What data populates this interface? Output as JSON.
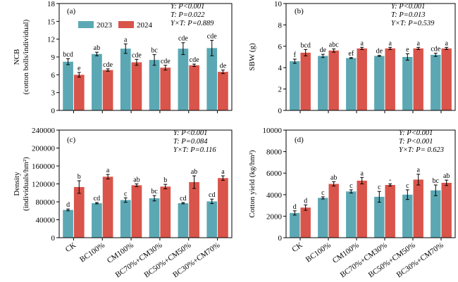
{
  "colors": {
    "y2023": "#5ba8b4",
    "y2024": "#d9544a"
  },
  "legend": [
    "2023",
    "2024"
  ],
  "categories": [
    "CK",
    "BC100%",
    "CM100%",
    "BC70%+CM30%",
    "BC50%+CM50%",
    "BC30%+CM70%"
  ],
  "chart_data": [
    {
      "type": "bar",
      "panel": "(a)",
      "ylabel_lines": [
        "NCB",
        "(cotton bolls/individual)"
      ],
      "ylim": [
        0,
        18
      ],
      "yticks": [
        0,
        3,
        6,
        9,
        12,
        15,
        18
      ],
      "ytick_labels": [
        "0",
        "3",
        "6",
        "9",
        "12",
        "15",
        "18"
      ],
      "categories": [
        "CK",
        "BC100%",
        "CM100%",
        "BC70%+CM30%",
        "BC50%+CM50%",
        "BC30%+CM70%"
      ],
      "series": [
        {
          "name": "2023",
          "values": [
            8.2,
            9.5,
            10.4,
            8.5,
            10.4,
            10.5
          ],
          "errors": [
            0.5,
            0.3,
            0.8,
            0.9,
            1.0,
            1.3
          ],
          "letters": [
            "bcd",
            "ab",
            "a",
            "bc",
            "cde",
            "cde"
          ]
        },
        {
          "name": "2024",
          "values": [
            6.0,
            6.8,
            8.1,
            7.2,
            7.6,
            6.5
          ],
          "errors": [
            0.4,
            0.2,
            0.5,
            0.4,
            0.2,
            0.3
          ],
          "letters": [
            "e",
            "cde",
            "cde",
            "cde",
            "cde",
            "de"
          ]
        }
      ],
      "stats": [
        "Y: P<0.001",
        "T: P=0.022",
        "Y×T: P=0.889"
      ]
    },
    {
      "type": "bar",
      "panel": "(b)",
      "ylabel_lines": [
        "SBW (g)"
      ],
      "ylim": [
        0,
        10
      ],
      "yticks": [
        0,
        2,
        4,
        6,
        8,
        10
      ],
      "ytick_labels": [
        "0",
        "2",
        "4",
        "6",
        "8",
        "10"
      ],
      "categories": [
        "CK",
        "BC100%",
        "CM100%",
        "BC70%+CM30%",
        "BC50%+CM50%",
        "BC30%+CM70%"
      ],
      "series": [
        {
          "name": "2023",
          "values": [
            4.6,
            5.1,
            4.9,
            5.1,
            5.0,
            5.2
          ],
          "errors": [
            0.2,
            0.15,
            0.05,
            0.05,
            0.3,
            0.15
          ],
          "letters": [
            "f",
            "de",
            "ef",
            "de",
            "e",
            "cde"
          ]
        },
        {
          "name": "2024",
          "values": [
            5.4,
            5.6,
            5.8,
            5.8,
            5.8,
            5.8
          ],
          "errors": [
            0.3,
            0.15,
            0.1,
            0.1,
            0.1,
            0.1
          ],
          "letters": [
            "bcd",
            "abc",
            "a",
            "a",
            "a",
            "a"
          ]
        }
      ],
      "stats": [
        "Y: P<0.001",
        "T: P=0.013",
        "Y×T: P=0.539"
      ]
    },
    {
      "type": "bar",
      "panel": "(c)",
      "ylabel_lines": [
        "Density",
        "(individuals/hm²)"
      ],
      "ylim": [
        0,
        240000
      ],
      "yticks": [
        0,
        40000,
        80000,
        120000,
        160000,
        200000,
        240000
      ],
      "ytick_labels": [
        "0",
        "40000",
        "80000",
        "120000",
        "160000",
        "200000",
        "240000"
      ],
      "categories": [
        "CK",
        "BC100%",
        "CM100%",
        "BC70%+CM30%",
        "BC50%+CM50%",
        "BC30%+CM70%"
      ],
      "series": [
        {
          "name": "2023",
          "values": [
            62000,
            77000,
            84000,
            88000,
            77000,
            81000
          ],
          "errors": [
            2000,
            1500,
            5000,
            6000,
            1500,
            5000
          ],
          "letters": [
            "d",
            "cd",
            "c",
            "bc",
            "cd",
            "cd"
          ]
        },
        {
          "name": "2024",
          "values": [
            113000,
            136000,
            117000,
            114000,
            124000,
            133000
          ],
          "errors": [
            14000,
            5000,
            3000,
            5000,
            14000,
            5000
          ],
          "letters": [
            "b",
            "a",
            "ab",
            "b",
            "ab",
            "a"
          ]
        }
      ],
      "stats": [
        "Y: P<0.001",
        "T: P=0.084",
        "Y×T: P=0.116"
      ]
    },
    {
      "type": "bar",
      "panel": "(d)",
      "ylabel_lines": [
        "Cotton yield (kg/hm²)"
      ],
      "ylim": [
        0,
        10000
      ],
      "yticks": [
        0,
        2000,
        4000,
        6000,
        8000,
        10000
      ],
      "ytick_labels": [
        "0",
        "2000",
        "4000",
        "6000",
        "8000",
        "10000"
      ],
      "categories": [
        "CK",
        "BC100%",
        "CM100%",
        "BC70%+CM30%",
        "BC50%+CM50%",
        "BC30%+CM70%"
      ],
      "series": [
        {
          "name": "2023",
          "values": [
            2300,
            3700,
            4300,
            3800,
            4000,
            4400
          ],
          "errors": [
            200,
            100,
            150,
            500,
            450,
            500
          ],
          "letters": [
            "d",
            "c",
            "c",
            "c",
            "c",
            "bc"
          ]
        },
        {
          "name": "2024",
          "values": [
            2800,
            5000,
            5300,
            4900,
            5400,
            5100
          ],
          "errors": [
            250,
            200,
            300,
            100,
            500,
            250
          ],
          "letters": [
            "d",
            "ab",
            "a",
            "-",
            "a",
            "ab"
          ]
        }
      ],
      "stats": [
        "Y: P<0.001",
        "T: P<0.001",
        "Y×T: P= 0.623"
      ]
    }
  ]
}
